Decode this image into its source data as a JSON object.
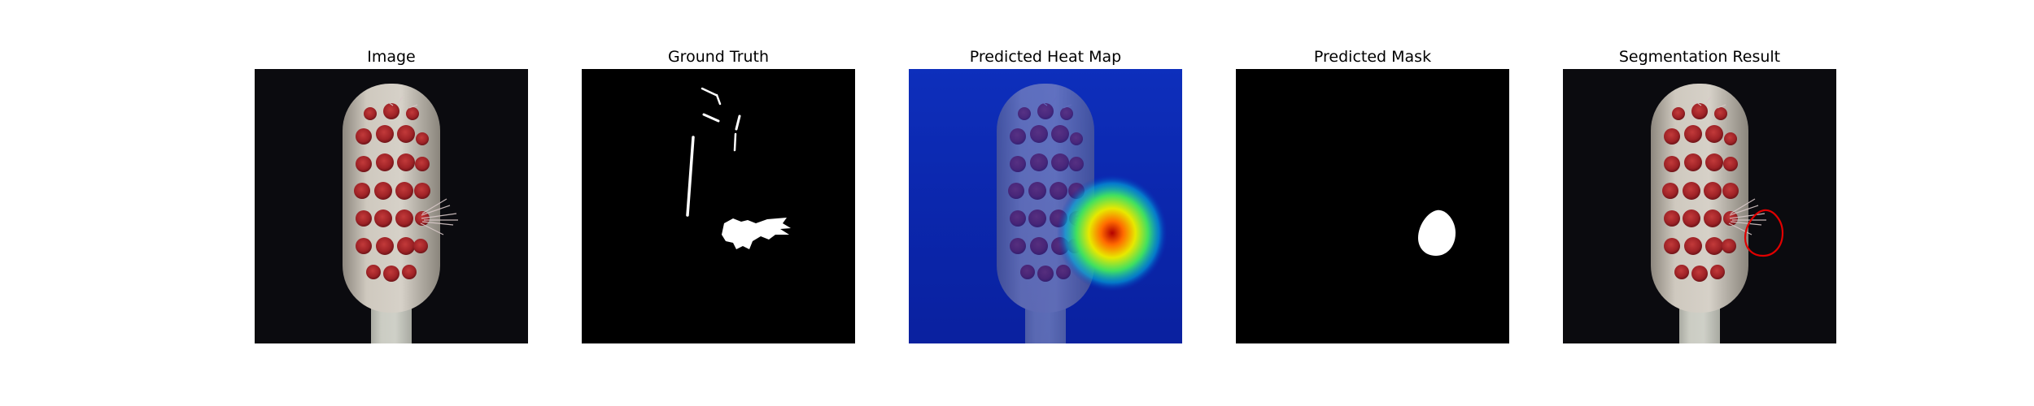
{
  "figure": {
    "panels": [
      {
        "title": "Image",
        "kind": "photo"
      },
      {
        "title": "Ground Truth",
        "kind": "ground-truth"
      },
      {
        "title": "Predicted Heat Map",
        "kind": "heatmap"
      },
      {
        "title": "Predicted Mask",
        "kind": "mask"
      },
      {
        "title": "Segmentation Result",
        "kind": "result"
      }
    ],
    "colors": {
      "background": "#0b0b0f",
      "bristle_red": "#a32226",
      "brush_body": "#c9c3b8",
      "mask_white": "#ffffff",
      "contour_red": "#e00000"
    }
  }
}
